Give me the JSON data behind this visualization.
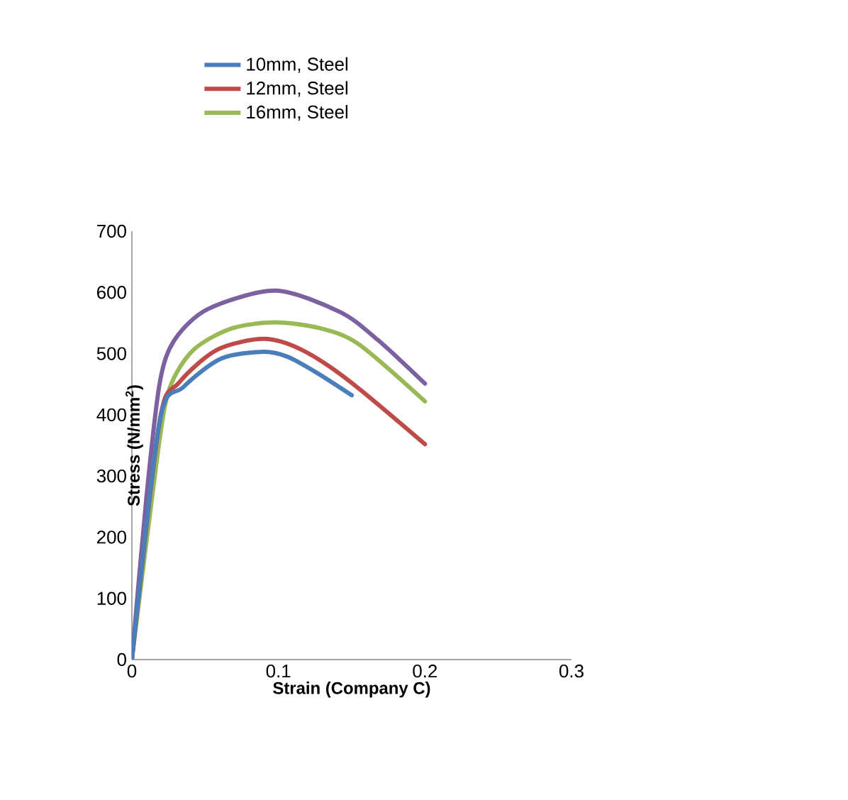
{
  "chart_data": {
    "type": "line",
    "xlabel": "Strain (Company C)",
    "ylabel": "Stress (N/mm$^{2}$)",
    "xlim": [
      0,
      0.3
    ],
    "xticks": [
      0,
      0.1,
      0.2,
      0.3
    ],
    "ylim": [
      0,
      700
    ],
    "yticks": [
      0,
      100,
      200,
      300,
      400,
      500,
      600,
      700
    ],
    "grid": false,
    "legend": "top left",
    "marker": "none",
    "line_style": "solid",
    "series": [
      {
        "name": "10mm, Steel",
        "color": "#4a7ebb",
        "x": [
          0,
          0.019,
          0.035,
          0.061,
          0.09,
          0.106,
          0.126,
          0.15
        ],
        "values": [
          0,
          390,
          445,
          492,
          503,
          495,
          469,
          432
        ]
      },
      {
        "name": "12mm, Steel",
        "color": "#be4b48",
        "x": [
          0,
          0.019,
          0.032,
          0.058,
          0.09,
          0.116,
          0.148,
          0.2
        ],
        "values": [
          0,
          390,
          452,
          506,
          524,
          506,
          456,
          352
        ]
      },
      {
        "name": "16mm, Steel",
        "color": "#98b954",
        "x": [
          0,
          0.018,
          0.026,
          0.042,
          0.068,
          0.098,
          0.129,
          0.155,
          0.2
        ],
        "values": [
          0,
          344,
          445,
          506,
          541,
          551,
          541,
          515,
          422
        ]
      },
      {
        "color": "#7d60a0",
        "x": [
          0,
          0.01,
          0.019,
          0.029,
          0.052,
          0.098,
          0.142,
          0.168,
          0.2
        ],
        "values": [
          0,
          267,
          452,
          522,
          573,
          603,
          568,
          522,
          451
        ]
      }
    ]
  }
}
